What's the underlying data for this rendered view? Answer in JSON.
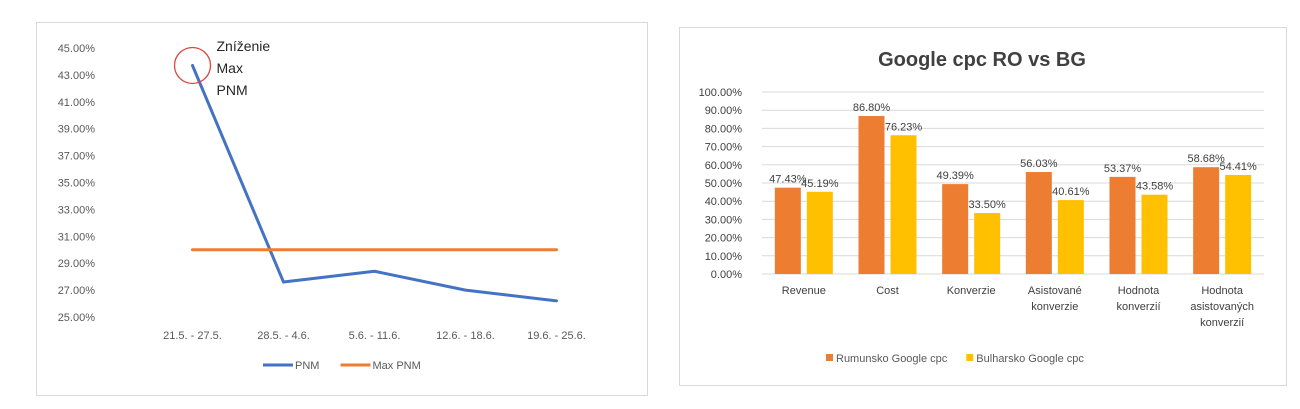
{
  "chart_data": [
    {
      "type": "line",
      "title": "",
      "xlabel": "",
      "ylabel": "",
      "categories": [
        "21.5. - 27.5.",
        "28.5. - 4.6.",
        "5.6. - 11.6.",
        "12.6. - 18.6.",
        "19.6. - 25.6."
      ],
      "ylim": [
        0.25,
        0.45
      ],
      "y_ticks": [
        "45.00%",
        "43.00%",
        "41.00%",
        "39.00%",
        "37.00%",
        "35.00%",
        "33.00%",
        "31.00%",
        "29.00%",
        "27.00%",
        "25.00%"
      ],
      "series": [
        {
          "name": "PNM",
          "values": [
            0.437,
            0.276,
            0.284,
            0.27,
            0.262
          ],
          "color": "#4472c4"
        },
        {
          "name": "Max PNM",
          "values": [
            0.3,
            0.3,
            0.3,
            0.3,
            0.3
          ],
          "color": "#ed7d31"
        }
      ],
      "annotation": {
        "lines": [
          "Zníženie",
          "Max",
          "PNM"
        ],
        "target": "PNM",
        "category_index": 0,
        "circle_color": "#e0443c"
      },
      "legend": "bottom",
      "grid": false
    },
    {
      "type": "bar",
      "title": "Google cpc RO vs BG",
      "xlabel": "",
      "ylabel": "",
      "categories": [
        [
          "Revenue"
        ],
        [
          "Cost"
        ],
        [
          "Konverzie"
        ],
        [
          "Asistované",
          "konverzie"
        ],
        [
          "Hodnota",
          "konverzií"
        ],
        [
          "Hodnota",
          "asistovaných",
          "konverzií"
        ]
      ],
      "ylim": [
        0,
        1
      ],
      "y_ticks": [
        "0.00%",
        "10.00%",
        "20.00%",
        "30.00%",
        "40.00%",
        "50.00%",
        "60.00%",
        "70.00%",
        "80.00%",
        "90.00%",
        "100.00%"
      ],
      "series": [
        {
          "name": "Rumunsko Google cpc",
          "values": [
            0.4743,
            0.868,
            0.4939,
            0.5603,
            0.5337,
            0.5868
          ],
          "labels": [
            "47.43%",
            "86.80%",
            "49.39%",
            "56.03%",
            "53.37%",
            "58.68%"
          ],
          "color": "#ed7d31"
        },
        {
          "name": "Bulharsko Google cpc",
          "values": [
            0.4519,
            0.7623,
            0.335,
            0.4061,
            0.4358,
            0.5441
          ],
          "labels": [
            "45.19%",
            "76.23%",
            "33.50%",
            "40.61%",
            "43.58%",
            "54.41%"
          ],
          "color": "#ffc000"
        }
      ],
      "legend": "bottom",
      "grid": true
    }
  ]
}
